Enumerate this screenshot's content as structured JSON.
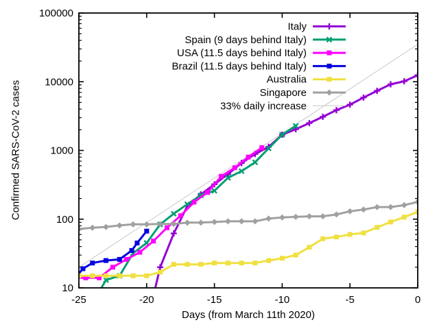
{
  "figure": {
    "background": "#ffffff",
    "text_color": "#000000",
    "frame_color": "#000000"
  },
  "chart_data": {
    "type": "line",
    "title": "",
    "xlabel": "Days (from March 11th 2020)",
    "ylabel": "Confirmed SARS-CoV-2 cases",
    "grid": false,
    "legend_position": "top-right-inside",
    "x_axis": {
      "min": -25,
      "max": 0,
      "ticks": [
        -25,
        -20,
        -15,
        -10,
        -5,
        0
      ],
      "tick_labels": [
        "-25",
        "-20",
        "-15",
        "-10",
        "-5",
        "0"
      ]
    },
    "y_axis": {
      "scale": "log",
      "min": 10,
      "max": 100000,
      "ticks": [
        10,
        100,
        1000,
        10000,
        100000
      ],
      "tick_labels": [
        "10",
        "100",
        "1000",
        "10000",
        "100000"
      ],
      "log_minor_ticks": true
    },
    "series": [
      {
        "name": "Italy",
        "color": "#9400d3",
        "marker": "plus",
        "line_width": 3,
        "points": [
          [
            -20,
            3
          ],
          [
            -19,
            20
          ],
          [
            -18,
            62
          ],
          [
            -17,
            155
          ],
          [
            -16,
            229
          ],
          [
            -15,
            322
          ],
          [
            -14,
            453
          ],
          [
            -13,
            655
          ],
          [
            -12,
            888
          ],
          [
            -11,
            1128
          ],
          [
            -10,
            1694
          ],
          [
            -9,
            2036
          ],
          [
            -8,
            2502
          ],
          [
            -7,
            3089
          ],
          [
            -6,
            3858
          ],
          [
            -5,
            4636
          ],
          [
            -4,
            5883
          ],
          [
            -3,
            7375
          ],
          [
            -2,
            9172
          ],
          [
            -1,
            10149
          ],
          [
            0,
            12462
          ]
        ]
      },
      {
        "name": "Spain (9 days behind Italy)",
        "color": "#009e73",
        "marker": "x",
        "line_width": 3,
        "points": [
          [
            -24,
            6
          ],
          [
            -23,
            13
          ],
          [
            -22,
            15
          ],
          [
            -21,
            32
          ],
          [
            -20,
            45
          ],
          [
            -19,
            84
          ],
          [
            -18,
            120
          ],
          [
            -17,
            165
          ],
          [
            -16,
            222
          ],
          [
            -15,
            259
          ],
          [
            -14,
            400
          ],
          [
            -13,
            500
          ],
          [
            -12,
            673
          ],
          [
            -11,
            1073
          ],
          [
            -10,
            1695
          ],
          [
            -9,
            2277
          ]
        ]
      },
      {
        "name": "USA (11.5 days behind Italy)",
        "color": "#ff00ff",
        "marker": "square",
        "line_width": 3,
        "points": [
          [
            -25.5,
            14
          ],
          [
            -24.5,
            14
          ],
          [
            -23.5,
            14
          ],
          [
            -22.5,
            20
          ],
          [
            -21.5,
            26
          ],
          [
            -20.5,
            33
          ],
          [
            -19.5,
            48
          ],
          [
            -18.5,
            75
          ],
          [
            -17.5,
            112
          ],
          [
            -16.5,
            177
          ],
          [
            -15.5,
            245
          ],
          [
            -14.5,
            420
          ],
          [
            -13.5,
            560
          ],
          [
            -12.5,
            800
          ],
          [
            -11.5,
            1100
          ]
        ]
      },
      {
        "name": "Brazil (11.5 days behind Italy)",
        "color": "#0000e0",
        "marker": "square",
        "line_width": 3,
        "points": [
          [
            -25.4,
            13
          ],
          [
            -24.7,
            19
          ],
          [
            -24,
            23
          ],
          [
            -23,
            25
          ],
          [
            -22,
            26
          ],
          [
            -21.1,
            35
          ],
          [
            -20.7,
            45
          ],
          [
            -20,
            67
          ]
        ]
      },
      {
        "name": "Australia",
        "color": "#f0e040",
        "marker": "square",
        "line_width": 3,
        "points": [
          [
            -25,
            15
          ],
          [
            -24,
            15
          ],
          [
            -23,
            15
          ],
          [
            -22,
            15
          ],
          [
            -21,
            15
          ],
          [
            -20,
            15
          ],
          [
            -19,
            17
          ],
          [
            -18,
            22
          ],
          [
            -17,
            22
          ],
          [
            -16,
            22
          ],
          [
            -15,
            23
          ],
          [
            -14,
            23
          ],
          [
            -13,
            23
          ],
          [
            -12,
            23
          ],
          [
            -11,
            25
          ],
          [
            -10,
            27
          ],
          [
            -9,
            30
          ],
          [
            -8,
            39
          ],
          [
            -7,
            52
          ],
          [
            -6,
            55
          ],
          [
            -5,
            60
          ],
          [
            -4,
            63
          ],
          [
            -3,
            76
          ],
          [
            -2,
            91
          ],
          [
            -1,
            107
          ],
          [
            0,
            128
          ]
        ]
      },
      {
        "name": "Singapore",
        "color": "#a0a0a0",
        "marker": "diamond",
        "line_width": 3,
        "points": [
          [
            -25,
            72
          ],
          [
            -24,
            75
          ],
          [
            -23,
            77
          ],
          [
            -22,
            81
          ],
          [
            -21,
            84
          ],
          [
            -20,
            84
          ],
          [
            -19,
            85
          ],
          [
            -18,
            85
          ],
          [
            -17,
            89
          ],
          [
            -16,
            89
          ],
          [
            -15,
            91
          ],
          [
            -14,
            93
          ],
          [
            -13,
            93
          ],
          [
            -12,
            93
          ],
          [
            -11,
            102
          ],
          [
            -10,
            106
          ],
          [
            -9,
            108
          ],
          [
            -8,
            110
          ],
          [
            -7,
            110
          ],
          [
            -6,
            117
          ],
          [
            -5,
            130
          ],
          [
            -4,
            138
          ],
          [
            -3,
            150
          ],
          [
            -2,
            150
          ],
          [
            -1,
            160
          ],
          [
            0,
            178
          ]
        ]
      },
      {
        "name": "33% daily increase",
        "color": "#c8c8c8",
        "marker": "none",
        "line_width": 1,
        "points": [
          [
            -25,
            20
          ],
          [
            0,
            35000
          ]
        ]
      }
    ],
    "draw_order": [
      "33% daily increase",
      "Italy",
      "Spain (9 days behind Italy)",
      "USA (11.5 days behind Italy)",
      "Brazil (11.5 days behind Italy)",
      "Australia",
      "Singapore"
    ]
  }
}
